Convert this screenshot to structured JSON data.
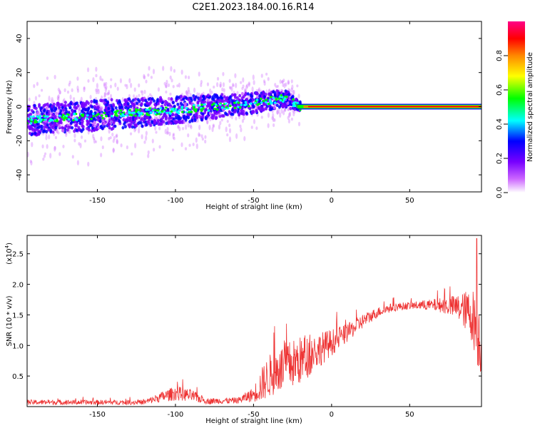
{
  "title": "C2E1.2023.184.00.16.R14",
  "chart_data": [
    {
      "type": "heatmap",
      "title": "C2E1.2023.184.00.16.R14",
      "xlabel": "Height of straight line (km)",
      "ylabel": "Frequency (Hz)",
      "xlim": [
        -195,
        96
      ],
      "ylim": [
        -50,
        50
      ],
      "xticks": [
        -150,
        -100,
        -50,
        0,
        50
      ],
      "yticks": [
        -40,
        -20,
        0,
        20,
        40
      ],
      "colorbar": {
        "label": "Normalized spectral amplitude",
        "range": [
          0,
          1
        ],
        "ticks": [
          0.0,
          0.2,
          0.4,
          0.6,
          0.8
        ],
        "colormap": [
          "#ffffff",
          "#cc66ff",
          "#7700ff",
          "#0000ff",
          "#00ffff",
          "#00ff00",
          "#ffff00",
          "#ff8800",
          "#ff0000",
          "#ff0088"
        ]
      },
      "ridge": {
        "x": [
          -195,
          -150,
          -100,
          -75,
          -50,
          -30,
          -20,
          0,
          96
        ],
        "center_hz": [
          -8,
          -5,
          -2,
          0,
          2,
          5,
          0,
          0,
          0
        ],
        "spread_hz": [
          9,
          9,
          8,
          7,
          6,
          5,
          3,
          1.5,
          1.5
        ]
      },
      "tone_amplitude_range": [
        0.8,
        1.0
      ]
    },
    {
      "type": "line",
      "xlabel": "Height of straight line (km)",
      "ylabel": "SNR (10 * v/v)",
      "multiplier_label": "(x10",
      "multiplier_exponent": "4",
      "xlim": [
        -195,
        96
      ],
      "ylim": [
        0,
        2.8
      ],
      "xticks": [
        -150,
        -100,
        -50,
        0,
        50
      ],
      "yticks": [
        0.5,
        1.0,
        1.5,
        2.0,
        2.5
      ],
      "yticklabels": [
        "0.5",
        "1.0",
        "1.5",
        "2.0",
        "2.5"
      ],
      "series": [
        {
          "name": "SNR",
          "color": "#ee3333",
          "envelope_x": [
            -195,
            -120,
            -110,
            -100,
            -90,
            -80,
            -60,
            -50,
            -45,
            -40,
            -30,
            -20,
            -10,
            0,
            10,
            20,
            30,
            40,
            50,
            60,
            70,
            80,
            85,
            90,
            94,
            96
          ],
          "envelope_mean": [
            0.07,
            0.07,
            0.15,
            0.22,
            0.18,
            0.09,
            0.1,
            0.2,
            0.35,
            0.5,
            0.65,
            0.75,
            0.9,
            1.05,
            1.2,
            1.4,
            1.55,
            1.63,
            1.65,
            1.66,
            1.66,
            1.63,
            1.58,
            1.5,
            1.2,
            0.8
          ],
          "noise_amplitude": [
            0.04,
            0.04,
            0.08,
            0.12,
            0.1,
            0.05,
            0.05,
            0.12,
            0.28,
            0.35,
            0.4,
            0.4,
            0.3,
            0.22,
            0.15,
            0.12,
            0.08,
            0.07,
            0.06,
            0.08,
            0.12,
            0.2,
            0.3,
            0.45,
            0.6,
            0.3
          ],
          "peak_x": 93,
          "peak_y": 2.75
        }
      ]
    }
  ]
}
